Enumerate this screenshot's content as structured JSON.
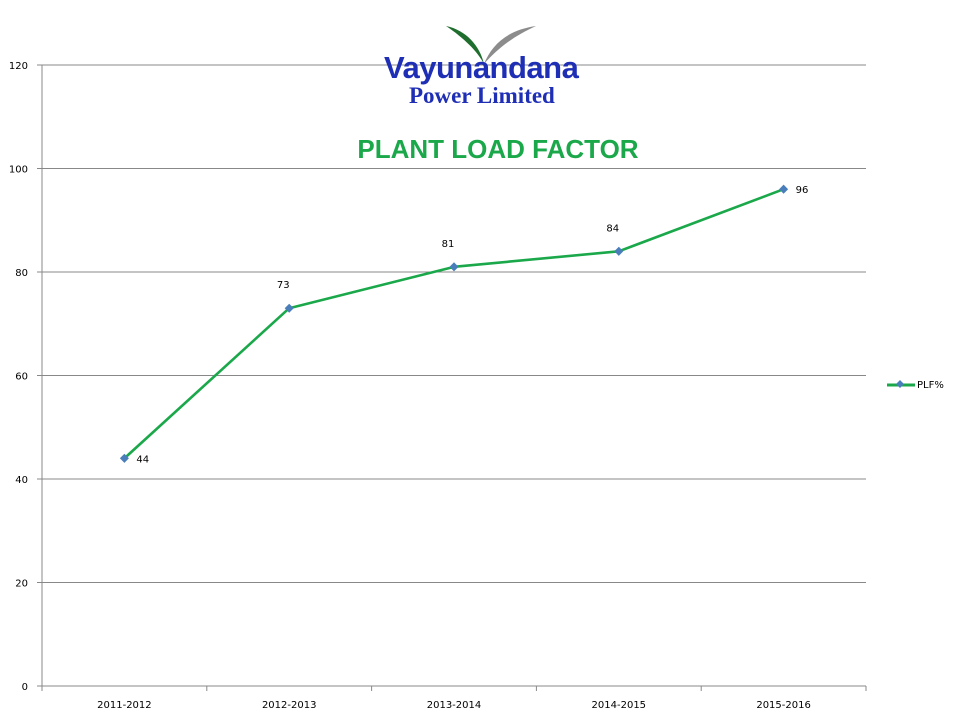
{
  "logo": {
    "name": "Vayunandana",
    "subtitle": "Power Limited"
  },
  "colors": {
    "series": "#1aa84a",
    "marker": "#4a7ebb",
    "title": "#1aa84a",
    "logo_text": "#1f2fb5",
    "gridline": "#888888"
  },
  "chart_data": {
    "type": "line",
    "title": "PLANT LOAD FACTOR",
    "categories": [
      "2011-2012",
      "2012-2013",
      "2013-2014",
      "2014-2015",
      "2015-2016"
    ],
    "series": [
      {
        "name": "PLF%",
        "values": [
          44,
          73,
          81,
          84,
          96
        ]
      }
    ],
    "xlabel": "",
    "ylabel": "",
    "ylim": [
      0,
      120
    ],
    "yticks": [
      "0",
      "20",
      "40",
      "60",
      "80",
      "100",
      "120"
    ],
    "grid": true,
    "legend_position": "right",
    "data_labels": [
      "44",
      "73",
      "81",
      "84",
      "96"
    ]
  }
}
